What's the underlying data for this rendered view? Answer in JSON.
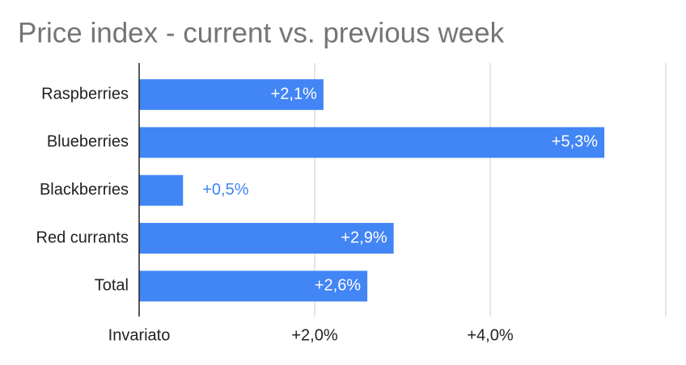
{
  "chart_data": {
    "type": "hbar",
    "title": "Price index - current vs. previous week",
    "categories": [
      "Raspberries",
      "Blueberries",
      "Blackberries",
      "Red currants",
      "Total"
    ],
    "values": [
      2.1,
      5.3,
      0.5,
      2.9,
      2.6
    ],
    "value_labels": [
      "+2,1%",
      "+5,3%",
      "+0,5%",
      "+2,9%",
      "+2,6%"
    ],
    "color": "#4285f4",
    "xlim": [
      0,
      6
    ],
    "xticks": [
      {
        "value": 0,
        "label": "Invariato"
      },
      {
        "value": 2,
        "label": "+2,0%"
      },
      {
        "value": 4,
        "label": "+4,0%"
      }
    ],
    "grid": true
  }
}
